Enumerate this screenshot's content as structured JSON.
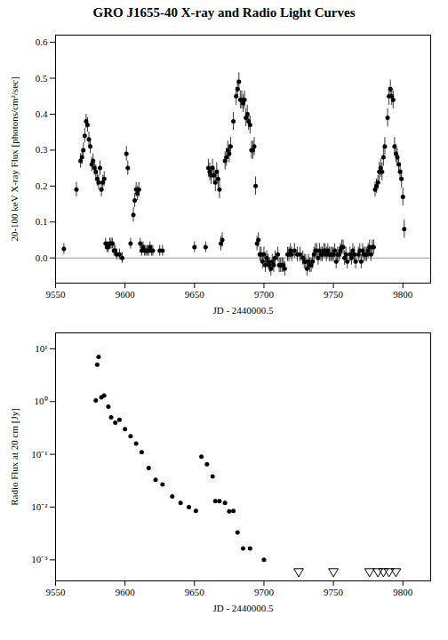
{
  "chart_data": [
    {
      "type": "scatter",
      "title": "GRO J1655-40 X-ray and Radio Light Curves",
      "xlabel": "JD - 2440000.5",
      "ylabel": "20-100 keV X-ray Flux [photons/cm²/sec]",
      "xlim": [
        9550,
        9820
      ],
      "xticks": [
        9550,
        9600,
        9650,
        9700,
        9750,
        9800
      ],
      "ylim": [
        -0.07,
        0.62
      ],
      "yticks": [
        {
          "value": 0.0,
          "label": "0.0"
        },
        0.1,
        0.2,
        0.3,
        0.4,
        0.5,
        0.6
      ],
      "zero_line": {
        "value": 0,
        "color": "#999999"
      },
      "series": [
        {
          "color": "#000000",
          "marker": "circle",
          "x": [
            9556,
            9565,
            9568,
            9569,
            9570,
            9571,
            9572,
            9573,
            9574,
            9575,
            9576,
            9577,
            9578,
            9579,
            9580,
            9581,
            9582,
            9583,
            9584,
            9585,
            9586,
            9587,
            9588,
            9589,
            9590,
            9591,
            9592,
            9593,
            9594,
            9596,
            9598,
            9601,
            9602,
            9604,
            9606,
            9607,
            9608,
            9609,
            9610,
            9611,
            9612,
            9613,
            9614,
            9615,
            9616,
            9617,
            9618,
            9619,
            9620,
            9625,
            9627,
            9650,
            9658,
            9660,
            9661,
            9662,
            9663,
            9664,
            9665,
            9666,
            9667,
            9668,
            9669,
            9670,
            9672,
            9673,
            9674,
            9675,
            9676,
            9678,
            9680,
            9681,
            9682,
            9683,
            9684,
            9685,
            9686,
            9687,
            9688,
            9689,
            9690,
            9691,
            9692,
            9693,
            9694,
            9695,
            9696,
            9697,
            9698,
            9699,
            9700,
            9701,
            9702,
            9703,
            9704,
            9705,
            9706,
            9707,
            9708,
            9710,
            9711,
            9712,
            9713,
            9714,
            9715,
            9717,
            9718,
            9719,
            9720,
            9722,
            9724,
            9726,
            9728,
            9729,
            9730,
            9731,
            9732,
            9733,
            9734,
            9735,
            9736,
            9737,
            9738,
            9739,
            9740,
            9741,
            9742,
            9743,
            9744,
            9745,
            9746,
            9747,
            9748,
            9749,
            9750,
            9751,
            9752,
            9753,
            9754,
            9755,
            9756,
            9757,
            9758,
            9759,
            9760,
            9762,
            9763,
            9764,
            9765,
            9766,
            9768,
            9769,
            9770,
            9771,
            9772,
            9773,
            9774,
            9775,
            9776,
            9777,
            9778,
            9779,
            9780,
            9781,
            9782,
            9783,
            9784,
            9785,
            9786,
            9787,
            9789,
            9790,
            9791,
            9792,
            9793,
            9794,
            9795,
            9796,
            9797,
            9798,
            9799,
            9800,
            9801
          ],
          "values": [
            0.025,
            0.19,
            0.27,
            0.28,
            0.3,
            0.34,
            0.38,
            0.37,
            0.33,
            0.31,
            0.26,
            0.27,
            0.25,
            0.24,
            0.22,
            0.21,
            0.25,
            0.19,
            0.21,
            0.22,
            0.04,
            0.03,
            0.03,
            0.04,
            0.04,
            0.04,
            0.02,
            0.02,
            0.01,
            0.01,
            0.0,
            0.29,
            0.25,
            0.04,
            0.12,
            0.16,
            0.19,
            0.18,
            0.19,
            0.04,
            0.02,
            0.03,
            0.02,
            0.02,
            0.02,
            0.02,
            0.03,
            0.02,
            0.02,
            0.02,
            0.02,
            0.03,
            0.03,
            0.25,
            0.24,
            0.23,
            0.25,
            0.23,
            0.21,
            0.24,
            0.22,
            0.19,
            0.04,
            0.05,
            0.27,
            0.28,
            0.3,
            0.29,
            0.31,
            0.38,
            0.45,
            0.47,
            0.49,
            0.44,
            0.44,
            0.43,
            0.44,
            0.39,
            0.4,
            0.38,
            0.37,
            0.3,
            0.3,
            0.31,
            0.2,
            0.04,
            0.05,
            0.01,
            0.01,
            -0.01,
            0.01,
            -0.02,
            0.0,
            -0.01,
            -0.02,
            -0.03,
            -0.01,
            -0.02,
            0.0,
            0.01,
            -0.02,
            -0.02,
            -0.02,
            -0.02,
            -0.03,
            0.01,
            0.01,
            0.02,
            0.01,
            0.02,
            0.01,
            0.01,
            0.0,
            -0.01,
            -0.01,
            -0.03,
            -0.01,
            -0.02,
            -0.02,
            -0.01,
            0.01,
            0.02,
            0.02,
            0.0,
            0.02,
            0.01,
            0.01,
            0.02,
            0.02,
            0.01,
            0.02,
            0.01,
            0.01,
            0.01,
            0.01,
            0.02,
            -0.01,
            0.01,
            0.01,
            0.02,
            0.03,
            0.03,
            0.0,
            0.01,
            -0.01,
            0.01,
            0.0,
            0.02,
            0.01,
            -0.01,
            0.01,
            0.02,
            -0.01,
            0.02,
            0.01,
            0.01,
            0.01,
            0.02,
            0.03,
            0.01,
            0.03,
            0.03,
            0.19,
            0.2,
            0.21,
            0.24,
            0.25,
            0.24,
            0.28,
            0.31,
            0.39,
            0.45,
            0.47,
            0.45,
            0.44,
            0.31,
            0.29,
            0.28,
            0.26,
            0.24,
            0.22,
            0.17,
            0.08
          ],
          "errors": [
            0.015,
            0.02,
            0.02,
            0.02,
            0.02,
            0.02,
            0.02,
            0.02,
            0.02,
            0.02,
            0.02,
            0.02,
            0.02,
            0.02,
            0.02,
            0.02,
            0.02,
            0.02,
            0.02,
            0.02,
            0.015,
            0.015,
            0.015,
            0.015,
            0.015,
            0.015,
            0.015,
            0.015,
            0.015,
            0.015,
            0.015,
            0.02,
            0.02,
            0.015,
            0.02,
            0.02,
            0.02,
            0.02,
            0.02,
            0.015,
            0.015,
            0.015,
            0.015,
            0.015,
            0.015,
            0.015,
            0.015,
            0.015,
            0.015,
            0.015,
            0.015,
            0.015,
            0.015,
            0.025,
            0.025,
            0.025,
            0.025,
            0.025,
            0.025,
            0.025,
            0.025,
            0.025,
            0.02,
            0.02,
            0.025,
            0.025,
            0.025,
            0.025,
            0.025,
            0.025,
            0.025,
            0.025,
            0.025,
            0.025,
            0.025,
            0.025,
            0.025,
            0.025,
            0.025,
            0.025,
            0.025,
            0.025,
            0.025,
            0.025,
            0.025,
            0.02,
            0.02,
            0.02,
            0.02,
            0.02,
            0.02,
            0.02,
            0.02,
            0.02,
            0.02,
            0.02,
            0.02,
            0.02,
            0.02,
            0.02,
            0.02,
            0.02,
            0.02,
            0.02,
            0.02,
            0.02,
            0.02,
            0.02,
            0.02,
            0.02,
            0.02,
            0.02,
            0.02,
            0.02,
            0.02,
            0.02,
            0.02,
            0.02,
            0.02,
            0.02,
            0.02,
            0.02,
            0.02,
            0.02,
            0.02,
            0.02,
            0.02,
            0.02,
            0.02,
            0.02,
            0.02,
            0.02,
            0.02,
            0.02,
            0.02,
            0.02,
            0.02,
            0.02,
            0.02,
            0.02,
            0.02,
            0.02,
            0.02,
            0.02,
            0.02,
            0.02,
            0.02,
            0.02,
            0.02,
            0.02,
            0.02,
            0.02,
            0.02,
            0.02,
            0.02,
            0.02,
            0.02,
            0.02,
            0.02,
            0.02,
            0.02,
            0.02,
            0.02,
            0.02,
            0.02,
            0.025,
            0.025,
            0.025,
            0.025,
            0.025,
            0.025,
            0.025,
            0.025,
            0.025,
            0.025,
            0.025,
            0.025,
            0.025,
            0.025,
            0.025,
            0.025,
            0.025,
            0.025
          ]
        }
      ]
    },
    {
      "type": "scatter",
      "xlabel": "JD - 2440000.5",
      "ylabel": "Radio Flux at 20 cm [Jy]",
      "log": "y",
      "xlim": [
        9550,
        9820
      ],
      "xticks": [
        9550,
        9600,
        9650,
        9700,
        9750,
        9800
      ],
      "ylim": [
        0.0004,
        20
      ],
      "yticks": [
        {
          "value": 0.001,
          "label": "10⁻³"
        },
        {
          "value": 0.01,
          "label": "10⁻²"
        },
        {
          "value": 0.1,
          "label": "10⁻¹"
        },
        {
          "value": 1,
          "label": "10⁰"
        },
        {
          "value": 10,
          "label": "10¹"
        }
      ],
      "series": [
        {
          "color": "#000000",
          "marker": "circle",
          "x": [
            9579,
            9580,
            9581,
            9583,
            9585,
            9588,
            9590,
            9593,
            9596,
            9600,
            9604,
            9608,
            9612,
            9617,
            9622,
            9627,
            9634,
            9640,
            9646,
            9651,
            9655,
            9659,
            9663,
            9665,
            9668,
            9672,
            9675,
            9678,
            9681,
            9685,
            9690,
            9700
          ],
          "values": [
            1.05,
            5.0,
            7.0,
            1.2,
            1.3,
            0.8,
            0.5,
            0.4,
            0.45,
            0.3,
            0.22,
            0.16,
            0.11,
            0.055,
            0.033,
            0.027,
            0.016,
            0.012,
            0.01,
            0.0085,
            0.09,
            0.065,
            0.038,
            0.013,
            0.013,
            0.012,
            0.0083,
            0.0085,
            0.0033,
            0.00165,
            0.00165,
            0.001
          ]
        },
        {
          "color": "#000000",
          "marker": "triangle-down-open",
          "x": [
            9725,
            9750,
            9776,
            9782,
            9786,
            9790,
            9795
          ],
          "values": [
            0.0006,
            0.0006,
            0.0006,
            0.0006,
            0.0006,
            0.0006,
            0.0006
          ]
        }
      ]
    }
  ]
}
